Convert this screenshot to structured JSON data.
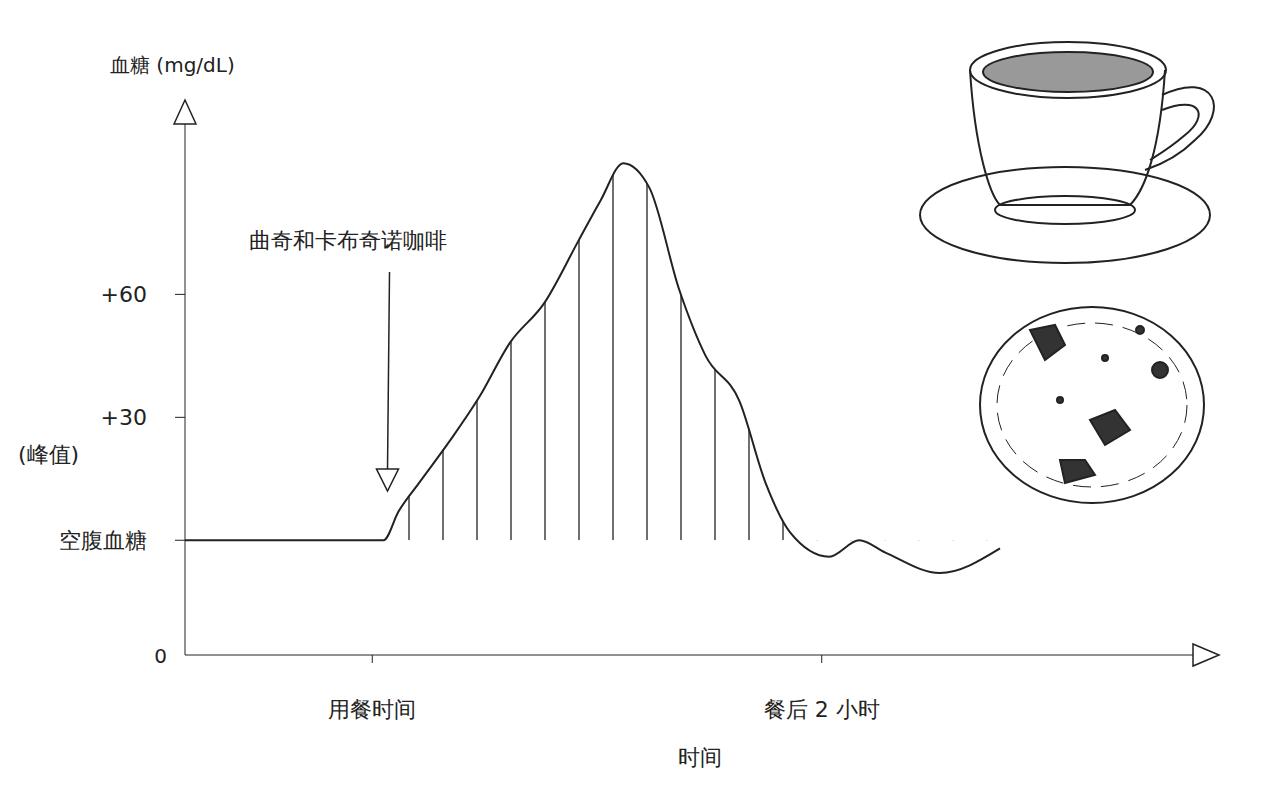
{
  "chart_data": {
    "type": "line",
    "x_label": "时间",
    "y_label": "血糖 (mg/dL)",
    "x": [
      -50,
      -19,
      3,
      7,
      12.5,
      20.5,
      28.6,
      36.6,
      46,
      55,
      61,
      67,
      74,
      82,
      89,
      98,
      105,
      111.5,
      122,
      130,
      137,
      151.5,
      167.6
    ],
    "values": [
      0,
      0,
      0,
      7,
      14,
      24,
      35,
      48,
      58,
      73,
      83,
      92,
      86,
      61,
      45,
      34,
      14,
      2,
      -4,
      0,
      -3,
      -8,
      -2
    ],
    "color": "#222222",
    "xlim": [
      -50,
      225
    ],
    "xticks": [
      {
        "value": 0,
        "label": "用餐时间"
      },
      {
        "value": 120,
        "label": "餐后 2 小时"
      }
    ],
    "ylim": [
      -28,
      105
    ],
    "yticks": [
      {
        "value": 0,
        "label": "空腹血糖"
      },
      {
        "value": 30,
        "label": "+30"
      },
      {
        "value": 60,
        "label": "+60"
      }
    ],
    "grid": false,
    "annotations": [
      {
        "text": "曲奇和卡布奇诺咖啡",
        "x": 3,
        "y": 12
      },
      {
        "text": "(峰值)"
      }
    ],
    "origin_label": "0"
  }
}
